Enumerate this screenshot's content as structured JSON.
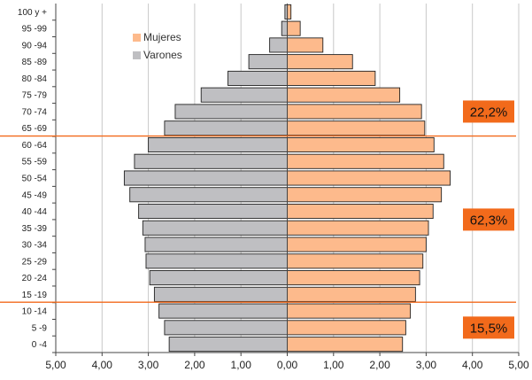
{
  "chart_data": {
    "type": "bar",
    "orientation": "horizontal",
    "title": "",
    "xlabel": "",
    "ylabel": "",
    "xlim": [
      -5,
      5
    ],
    "x_tick_labels": [
      "5,00",
      "4,00",
      "3,00",
      "2,00",
      "1,00",
      "0,00",
      "1,00",
      "2,00",
      "3,00",
      "4,00",
      "5,00"
    ],
    "grid": "vertical",
    "legend_placement": "top-left",
    "categories": [
      "100 y +",
      "95 -99",
      "90 -94",
      "85 -89",
      "80 -84",
      "75 -79",
      "70 -74",
      "65 -69",
      "60 -64",
      "55 -59",
      "50 -54",
      "45 -49",
      "40 -44",
      "35 -39",
      "30 -34",
      "25 -29",
      "20 -24",
      "15 -19",
      "10 -14",
      "5 -9",
      "0 -4"
    ],
    "series": [
      {
        "name": "Mujeres",
        "side": "right",
        "color": "#FDBA8C",
        "values": [
          0.08,
          0.28,
          0.77,
          1.41,
          1.9,
          2.43,
          2.9,
          2.97,
          3.17,
          3.38,
          3.52,
          3.33,
          3.15,
          3.05,
          3.0,
          2.93,
          2.86,
          2.77,
          2.66,
          2.56,
          2.49
        ]
      },
      {
        "name": "Varones",
        "side": "left",
        "color": "#BFBFC2",
        "values": [
          0.05,
          0.12,
          0.38,
          0.83,
          1.28,
          1.86,
          2.42,
          2.65,
          3.0,
          3.3,
          3.52,
          3.4,
          3.21,
          3.12,
          3.07,
          3.05,
          2.97,
          2.87,
          2.77,
          2.65,
          2.55
        ]
      }
    ],
    "bands": [
      {
        "label": "22,2%",
        "from": "65 -69",
        "to": "100 y +"
      },
      {
        "label": "62,3%",
        "from": "15 -19",
        "to": "60 -64"
      },
      {
        "label": "15,5%",
        "from": "0 -4",
        "to": "10 -14"
      }
    ],
    "band_label_color": "#F26A1B",
    "divider_color": "#F26A1B"
  }
}
